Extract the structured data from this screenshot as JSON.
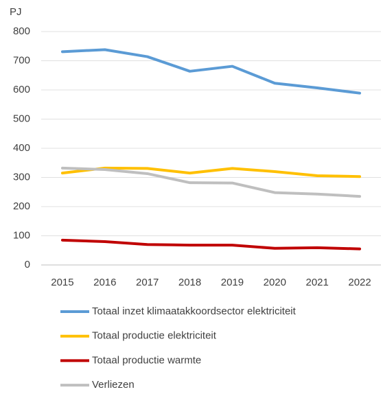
{
  "chart_data": {
    "type": "line",
    "y_label": "PJ",
    "categories": [
      "2015",
      "2016",
      "2017",
      "2018",
      "2019",
      "2020",
      "2021",
      "2022"
    ],
    "series": [
      {
        "name": "Totaal inzet klimaatakkoordsector elektriciteit",
        "color": "#5b9bd5",
        "values": [
          731,
          738,
          714,
          664,
          681,
          623,
          607,
          589
        ]
      },
      {
        "name": "Totaal productie elektriciteit",
        "color": "#ffc000",
        "values": [
          315,
          332,
          331,
          315,
          331,
          320,
          306,
          303
        ]
      },
      {
        "name": "Totaal productie warmte",
        "color": "#c00000",
        "values": [
          85,
          80,
          70,
          68,
          68,
          57,
          59,
          55
        ]
      },
      {
        "name": "Verliezen",
        "color": "#bfbfbf",
        "values": [
          332,
          327,
          313,
          282,
          281,
          248,
          243,
          235
        ]
      }
    ],
    "ylim": [
      0,
      800
    ],
    "yticks": [
      0,
      100,
      200,
      300,
      400,
      500,
      600,
      700,
      800
    ],
    "grid": true
  }
}
